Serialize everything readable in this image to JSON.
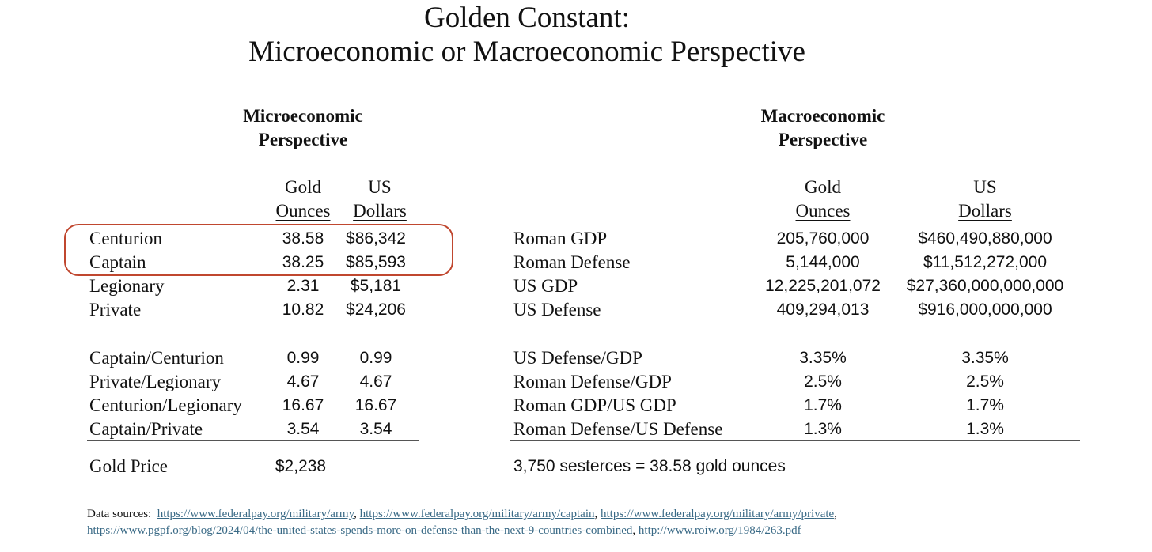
{
  "title": {
    "line1": "Golden Constant:",
    "line2": "Microeconomic or Macroeconomic Perspective"
  },
  "micro": {
    "heading_line1": "Microeconomic",
    "heading_line2": "Perspective",
    "col_gold": [
      "Gold",
      "Ounces"
    ],
    "col_usd": [
      "US",
      "Dollars"
    ],
    "rows": [
      {
        "label": "Centurion",
        "gold": "38.58",
        "usd": "$86,342"
      },
      {
        "label": "Captain",
        "gold": "38.25",
        "usd": "$85,593"
      },
      {
        "label": "Legionary",
        "gold": "2.31",
        "usd": "$5,181"
      },
      {
        "label": "Private",
        "gold": "10.82",
        "usd": "$24,206"
      }
    ],
    "ratios": [
      {
        "label": "Captain/Centurion",
        "gold": "0.99",
        "usd": "0.99"
      },
      {
        "label": "Private/Legionary",
        "gold": "4.67",
        "usd": "4.67"
      },
      {
        "label": "Centurion/Legionary",
        "gold": "16.67",
        "usd": "16.67"
      },
      {
        "label": "Captain/Private",
        "gold": "3.54",
        "usd": "3.54"
      }
    ],
    "gold_price_label": "Gold Price",
    "gold_price_value": "$2,238",
    "highlight_color": "#c0472f"
  },
  "macro": {
    "heading_line1": "Macroeconomic",
    "heading_line2": "Perspective",
    "col_gold": [
      "Gold",
      "Ounces"
    ],
    "col_usd": [
      "US",
      "Dollars"
    ],
    "rows": [
      {
        "label": "Roman GDP",
        "gold": "205,760,000",
        "usd": "$460,490,880,000"
      },
      {
        "label": "Roman Defense",
        "gold": "5,144,000",
        "usd": "$11,512,272,000"
      },
      {
        "label": "US GDP",
        "gold": "12,225,201,072",
        "usd": "$27,360,000,000,000"
      },
      {
        "label": "US Defense",
        "gold": "409,294,013",
        "usd": "$916,000,000,000"
      }
    ],
    "ratios": [
      {
        "label": "US Defense/GDP",
        "gold": "3.35%",
        "usd": "3.35%"
      },
      {
        "label": "Roman Defense/GDP",
        "gold": "2.5%",
        "usd": "2.5%"
      },
      {
        "label": "Roman GDP/US GDP",
        "gold": "1.7%",
        "usd": "1.7%"
      },
      {
        "label": "Roman Defense/US Defense",
        "gold": "1.3%",
        "usd": "1.3%"
      }
    ],
    "conversion_note": "3,750 sesterces = 38.58 gold ounces"
  },
  "sources": {
    "label": "Data sources:",
    "links": [
      "https://www.federalpay.org/military/army",
      "https://www.federalpay.org/military/army/captain",
      "https://www.federalpay.org/military/army/private",
      "https://www.pgpf.org/blog/2024/04/the-united-states-spends-more-on-defense-than-the-next-9-countries-combined",
      "http://www.roiw.org/1984/263.pdf"
    ],
    "separator": ",",
    "link_color": "#3a6a86"
  }
}
